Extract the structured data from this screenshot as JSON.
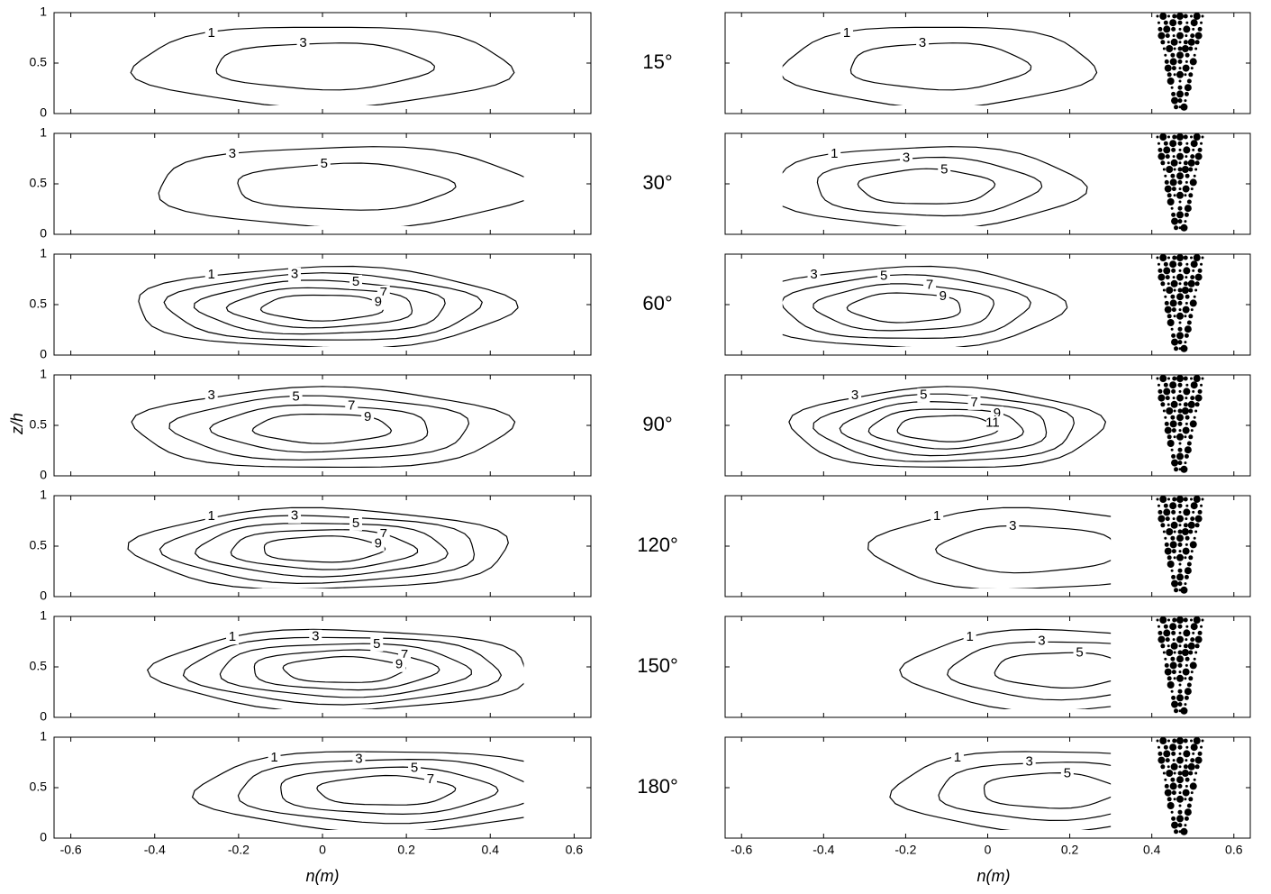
{
  "chart_data": {
    "type": "contour",
    "xlabel": "n(m)",
    "ylabel": "z/h",
    "xlim": [
      -0.64,
      0.64
    ],
    "xticks": [
      -0.6,
      -0.4,
      -0.2,
      0,
      0.2,
      0.4,
      0.6
    ],
    "ylim": [
      0,
      1
    ],
    "yticks": [
      0,
      0.5,
      1
    ],
    "rows": [
      {
        "angle": "15°",
        "left_levels": [
          1,
          3
        ],
        "right_levels": [
          1,
          3
        ]
      },
      {
        "angle": "30°",
        "left_levels": [
          3,
          5
        ],
        "right_levels": [
          1,
          3,
          5
        ]
      },
      {
        "angle": "60°",
        "left_levels": [
          1,
          3,
          5,
          7,
          9
        ],
        "right_levels": [
          3,
          5,
          7,
          9
        ]
      },
      {
        "angle": "90°",
        "left_levels": [
          3,
          5,
          7,
          9
        ],
        "right_levels": [
          3,
          5,
          7,
          9,
          11
        ]
      },
      {
        "angle": "120°",
        "left_levels": [
          1,
          3,
          5,
          7,
          9
        ],
        "right_levels": [
          1,
          3
        ]
      },
      {
        "angle": "150°",
        "left_levels": [
          1,
          3,
          5,
          7,
          9
        ],
        "right_levels": [
          1,
          3,
          5
        ]
      },
      {
        "angle": "180°",
        "left_levels": [
          1,
          3,
          5,
          7
        ],
        "right_levels": [
          1,
          3,
          5
        ]
      }
    ]
  }
}
